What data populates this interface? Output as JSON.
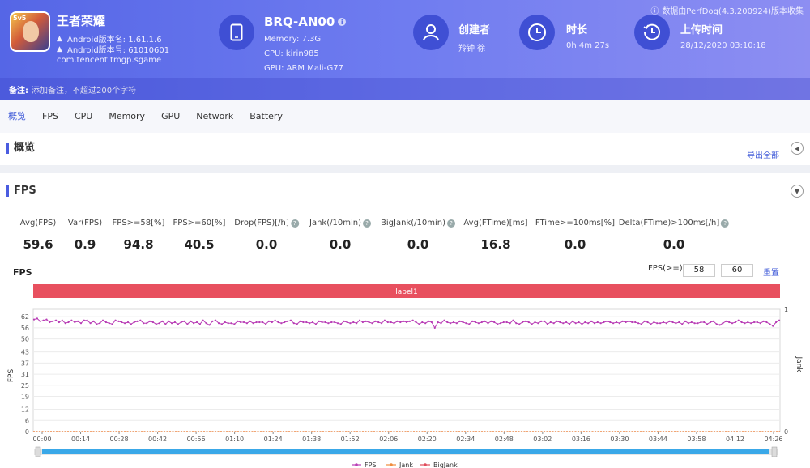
{
  "app": {
    "name": "王者荣耀",
    "badge": "5v5",
    "android_version": "Android版本名: 1.61.1.6",
    "android_code": "Android版本号: 61010601",
    "package": "com.tencent.tmgp.sgame"
  },
  "device": {
    "name": "BRQ-AN00",
    "info_glyph": "i",
    "memory": "Memory: 7.3G",
    "cpu": "CPU: kirin985",
    "gpu": "GPU: ARM Mali-G77"
  },
  "creator": {
    "title": "创建者",
    "value": "羚钟 徐"
  },
  "duration": {
    "title": "时长",
    "value": "0h 4m 27s"
  },
  "upload": {
    "title": "上传时间",
    "value": "28/12/2020 03:10:18"
  },
  "source": "数据由PerfDog(4.3.200924)版本收集",
  "note": {
    "label": "备注:",
    "placeholder": "添加备注，不超过200个字符"
  },
  "tabs": [
    "概览",
    "FPS",
    "CPU",
    "Memory",
    "GPU",
    "Network",
    "Battery"
  ],
  "overview": {
    "title": "概览",
    "export_label": "导出全部"
  },
  "fps_panel": {
    "title": "FPS",
    "metrics": [
      {
        "label": "Avg(FPS)",
        "value": "59.6",
        "help": false
      },
      {
        "label": "Var(FPS)",
        "value": "0.9",
        "help": false
      },
      {
        "label": "FPS>=58[%]",
        "value": "94.8",
        "help": false
      },
      {
        "label": "FPS>=60[%]",
        "value": "40.5",
        "help": false
      },
      {
        "label": "Drop(FPS)[/h]",
        "value": "0.0",
        "help": true
      },
      {
        "label": "Jank(/10min)",
        "value": "0.0",
        "help": true
      },
      {
        "label": "BigJank(/10min)",
        "value": "0.0",
        "help": true
      },
      {
        "label": "Avg(FTime)[ms]",
        "value": "16.8",
        "help": false
      },
      {
        "label": "FTime>=100ms[%]",
        "value": "0.0",
        "help": false
      },
      {
        "label": "Delta(FTime)>100ms[/h]",
        "value": "0.0",
        "help": true
      }
    ],
    "chart_title": "FPS",
    "fps_filter_label": "FPS(>=)",
    "fps_filter_values": [
      "58",
      "60"
    ],
    "reset_label": "重置"
  },
  "colors": {
    "header_start": "#5566e6",
    "accent": "#3f5ad8",
    "fps_line": "#b83cb5",
    "jank": "#f08c3c",
    "bigjank": "#e04b5a",
    "label_band": "#e8505f",
    "scrollbar": "#3aa8e8"
  },
  "chart_data": {
    "type": "line",
    "title": "",
    "xlabel": "",
    "ylabel": "FPS",
    "y2label": "Jank",
    "ylim": [
      0,
      66
    ],
    "y2lim": [
      0,
      1
    ],
    "yticks": [
      0,
      6,
      12,
      19,
      25,
      31,
      37,
      43,
      50,
      56,
      62
    ],
    "y2ticks": [
      0,
      1
    ],
    "x_ticks": [
      "00:00",
      "00:14",
      "00:28",
      "00:42",
      "00:56",
      "01:10",
      "01:24",
      "01:38",
      "01:52",
      "02:06",
      "02:20",
      "02:34",
      "02:48",
      "03:02",
      "03:16",
      "03:30",
      "03:44",
      "03:58",
      "04:12",
      "04:26"
    ],
    "x_range_seconds": [
      0,
      267
    ],
    "label_band": "label1",
    "legend_position": "bottom",
    "grid": true,
    "series": [
      {
        "name": "FPS",
        "values": [
          60.5,
          61,
          59.5,
          60,
          60.5,
          59,
          59.5,
          60,
          59,
          60,
          58.5,
          59,
          60,
          59,
          59.5,
          58.5,
          60,
          60,
          58.5,
          59.5,
          58,
          58.5,
          60,
          59,
          58.5,
          58,
          60,
          59.5,
          59,
          58.5,
          59,
          58,
          59,
          59.5,
          60,
          58.5,
          58.5,
          59.5,
          59,
          58,
          58.5,
          59.5,
          58,
          59.5,
          58.5,
          59,
          58,
          59,
          59.5,
          58,
          59.5,
          58.5,
          59,
          58,
          60,
          58.5,
          57.5,
          59.5,
          60,
          58.5,
          58,
          59,
          58.5,
          58.5,
          58,
          59.5,
          59,
          59,
          58.5,
          59.5,
          58.5,
          59,
          59,
          59,
          58,
          59.5,
          59,
          60,
          59,
          58.5,
          59,
          59.5,
          60,
          58.5,
          58,
          59.5,
          59,
          59,
          58.5,
          59,
          58,
          59.5,
          59,
          59,
          58.5,
          59,
          59,
          58.5,
          58,
          59.5,
          59,
          58.5,
          59,
          58.5,
          60,
          59,
          59.5,
          59,
          58.5,
          59.5,
          59,
          58.5,
          60,
          59,
          59,
          58.5,
          59.5,
          59,
          59.5,
          59,
          59.5,
          60,
          59,
          58,
          59,
          58.5,
          59.5,
          59,
          56,
          59,
          58.5,
          60,
          59,
          58.5,
          59,
          58.5,
          59.5,
          59,
          58.5,
          58,
          59.5,
          59,
          58.5,
          59,
          59.5,
          58.5,
          59.5,
          59,
          58,
          58.5,
          59,
          59,
          58.5,
          60,
          58.5,
          58,
          59,
          59.5,
          59,
          58,
          59,
          58.5,
          59.5,
          59.5,
          58,
          59,
          58.5,
          59.5,
          59,
          58.5,
          59,
          58,
          59.5,
          58.5,
          59,
          58,
          59,
          58.5,
          59.5,
          58.5,
          59,
          58.5,
          59,
          59.5,
          59,
          58.5,
          59,
          58.5,
          59.5,
          59,
          59.5,
          59,
          59,
          58.5,
          58,
          59.5,
          59,
          58,
          59,
          58.5,
          58.5,
          59,
          58.5,
          59.5,
          59,
          58.5,
          59,
          58,
          59.5,
          58.5,
          59,
          58.5,
          58.5,
          59,
          59,
          58,
          59,
          59.5,
          58,
          57.5,
          58.5,
          59.5,
          59,
          58.5,
          59,
          60,
          59,
          58.5,
          59,
          58.5,
          59,
          59,
          58.5,
          59.5,
          59,
          58,
          57,
          59,
          60
        ]
      },
      {
        "name": "Jank",
        "values": [
          0
        ]
      },
      {
        "name": "BigJank",
        "values": [
          0
        ]
      }
    ]
  }
}
